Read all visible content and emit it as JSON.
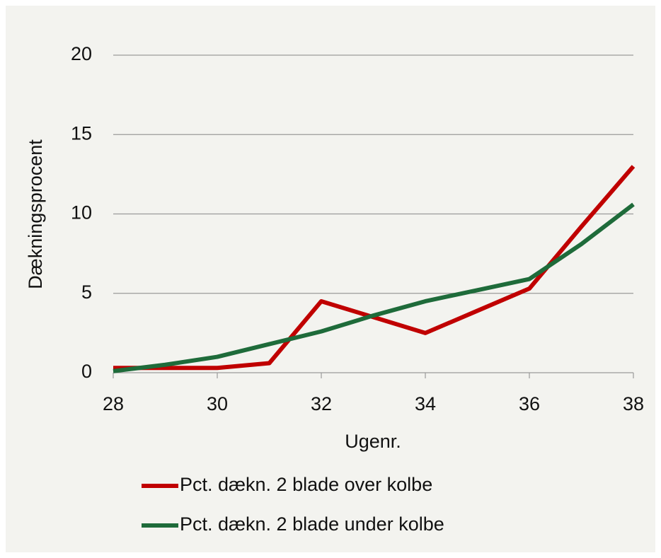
{
  "chart_data": {
    "type": "line",
    "x": [
      28,
      29,
      30,
      31,
      32,
      33,
      34,
      35,
      36,
      37,
      38
    ],
    "series": [
      {
        "name": "Pct. dækn. 2 blade over kolbe",
        "color": "#c00000",
        "values": [
          0.3,
          0.3,
          0.3,
          0.6,
          4.5,
          3.5,
          2.5,
          3.9,
          5.3,
          9.2,
          13.0
        ]
      },
      {
        "name": "Pct. dækn. 2 blade under kolbe",
        "color": "#1e6b3a",
        "values": [
          0.1,
          0.5,
          1.0,
          1.8,
          2.6,
          3.6,
          4.5,
          5.2,
          5.9,
          8.1,
          10.6
        ]
      }
    ],
    "xlabel": "Ugenr.",
    "ylabel": "Dækningsprocent",
    "xlim": [
      28,
      38
    ],
    "xticks": [
      28,
      30,
      32,
      34,
      36,
      38
    ],
    "ylim": [
      0,
      20
    ],
    "yticks": [
      0,
      5,
      10,
      15,
      20
    ],
    "grid": true,
    "legend": "bottom"
  }
}
